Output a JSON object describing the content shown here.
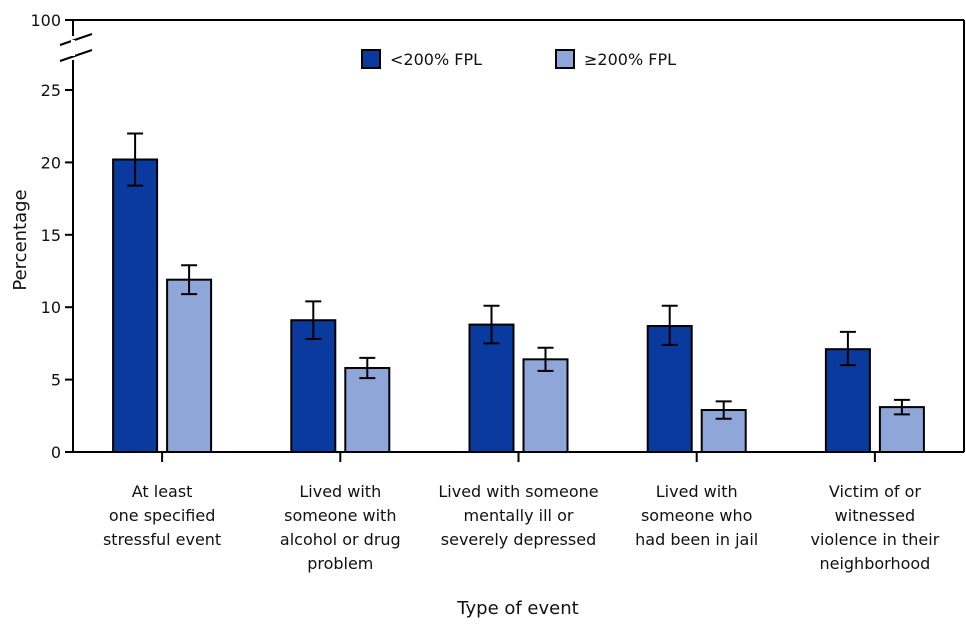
{
  "chart_data": {
    "type": "bar",
    "title": "",
    "xlabel": "Type of event",
    "ylabel": "Percentage",
    "ylim": [
      0,
      25
    ],
    "axis_break": {
      "upper_label": "100",
      "note": "y-axis break between 25 and 100"
    },
    "yticks": [
      "0",
      "5",
      "10",
      "15",
      "20",
      "25"
    ],
    "grid": false,
    "legend_position": "top-center",
    "categories": [
      [
        "At least",
        "one specified",
        "stressful event"
      ],
      [
        "Lived with",
        "someone with",
        "alcohol or drug",
        "problem"
      ],
      [
        "Lived with someone",
        "mentally ill or",
        "severely depressed"
      ],
      [
        "Lived with",
        "someone who",
        "had been in jail"
      ],
      [
        "Victim of or",
        "witnessed",
        "violence in their",
        "neighborhood"
      ]
    ],
    "series": [
      {
        "name": "<200% FPL",
        "color": "#0a3a9e",
        "values": [
          20.2,
          9.1,
          8.8,
          8.7,
          7.1
        ],
        "ci_low": [
          18.4,
          7.8,
          7.5,
          7.4,
          6.0
        ],
        "ci_high": [
          22.0,
          10.4,
          10.1,
          10.1,
          8.3
        ]
      },
      {
        "name": "≥200% FPL",
        "color": "#8ea6d8",
        "values": [
          11.9,
          5.8,
          6.4,
          2.9,
          3.1
        ],
        "ci_low": [
          10.9,
          5.1,
          5.6,
          2.3,
          2.6
        ],
        "ci_high": [
          12.9,
          6.5,
          7.2,
          3.5,
          3.6
        ]
      }
    ]
  }
}
